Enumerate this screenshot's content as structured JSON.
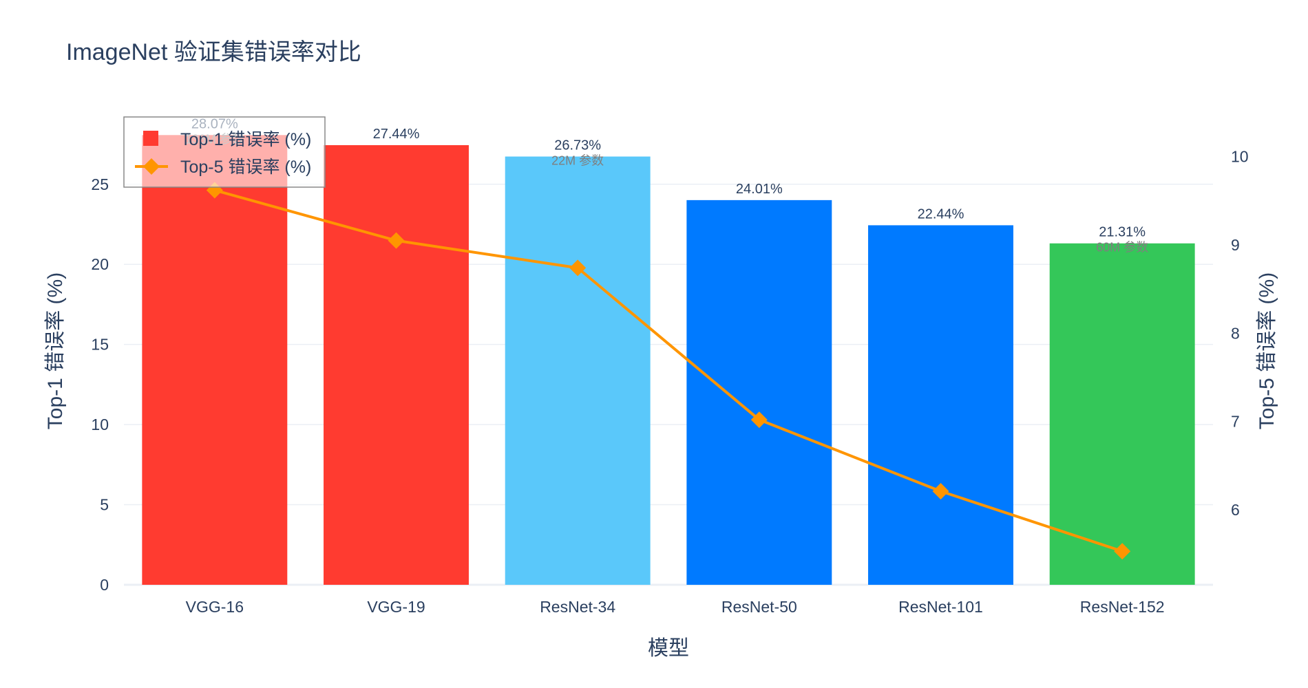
{
  "chart_data": {
    "type": "bar",
    "title": "ImageNet 验证集错误率对比",
    "xlabel": "模型",
    "ylabel": "Top-1 错误率 (%)",
    "y2label": "Top-5 错误率 (%)",
    "categories": [
      "VGG-16",
      "VGG-19",
      "ResNet-34",
      "ResNet-50",
      "ResNet-101",
      "ResNet-152"
    ],
    "series": [
      {
        "name": "Top-1 错误率 (%)",
        "type": "bar",
        "axis": "y",
        "values": [
          28.07,
          27.44,
          26.73,
          24.01,
          22.44,
          21.31
        ],
        "labels": [
          "28.07%",
          "27.44%",
          "26.73%",
          "24.01%",
          "22.44%",
          "21.31%"
        ],
        "colors": [
          "#ff3b30",
          "#ff3b30",
          "#5ac8fa",
          "#007aff",
          "#007aff",
          "#34c759"
        ]
      },
      {
        "name": "Top-5 错误率 (%)",
        "type": "line",
        "axis": "y2",
        "values": [
          9.62,
          9.05,
          8.74,
          7.02,
          6.21,
          5.53
        ],
        "color": "#ff9500"
      }
    ],
    "annotations": [
      {
        "category": "VGG-16",
        "text": "138M 参数"
      },
      {
        "category": "ResNet-34",
        "text": "22M 参数"
      },
      {
        "category": "ResNet-152",
        "text": "60M 参数"
      }
    ],
    "ylim": [
      0,
      29.2
    ],
    "y2lim": [
      5.15,
      10.45
    ],
    "yticks": [
      0,
      5,
      10,
      15,
      20,
      25
    ],
    "y2ticks": [
      6,
      7,
      8,
      9,
      10
    ],
    "grid": true,
    "legend_position": "top-left"
  }
}
